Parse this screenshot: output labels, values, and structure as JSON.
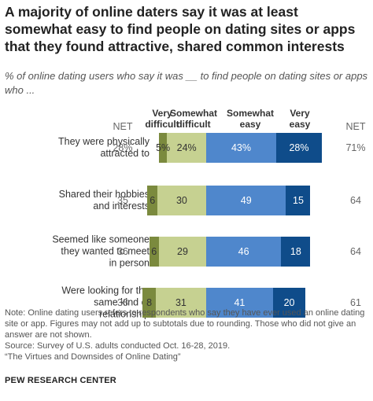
{
  "chart_data": {
    "type": "diverging_bar",
    "title": "A majority of online daters say it was at least somewhat easy to find people on dating sites or apps that they found attractive, shared common interests",
    "subtitle": "% of online dating users who say it was __ to find people on dating sites or apps who ...",
    "categories": [
      "They were physically\nattracted to",
      "Shared their hobbies\nand interests",
      "Seemed like someone\nthey wanted to meet\nin person",
      "Were looking for the\nsame kind of\nrelationship"
    ],
    "series": [
      {
        "name": "Very\ndifficult",
        "color": "#7b8a3e",
        "label_color": "#333333",
        "side": "negative",
        "values": [
          5,
          6,
          6,
          8
        ],
        "value_labels": [
          "5%",
          "6",
          "6",
          "8"
        ]
      },
      {
        "name": "Somewhat\ndifficult",
        "color": "#c6d191",
        "label_color": "#333333",
        "side": "negative",
        "values": [
          24,
          30,
          29,
          31
        ],
        "value_labels": [
          "24%",
          "30",
          "29",
          "31"
        ]
      },
      {
        "name": "Somewhat\neasy",
        "color": "#4f87cc",
        "label_color": "#ffffff",
        "side": "positive",
        "values": [
          43,
          49,
          46,
          41
        ],
        "value_labels": [
          "43%",
          "49",
          "46",
          "41"
        ]
      },
      {
        "name": "Very\neasy",
        "color": "#0f4c8a",
        "label_color": "#ffffff",
        "side": "positive",
        "values": [
          28,
          15,
          18,
          20
        ],
        "value_labels": [
          "28%",
          "15",
          "18",
          "20"
        ]
      }
    ],
    "net_left": {
      "label": "NET",
      "values": [
        28,
        35,
        36,
        38
      ],
      "value_labels": [
        "28%",
        "35",
        "36",
        "38"
      ]
    },
    "net_right": {
      "label": "NET",
      "values": [
        71,
        64,
        64,
        61
      ],
      "value_labels": [
        "71%",
        "64",
        "64",
        "61"
      ]
    },
    "note": "Note: Online dating users refers to respondents who say they have ever used an online dating site or app. Figures may not add up to subtotals due to rounding. Those who did not give an answer are not shown.",
    "source": "Source: Survey of U.S. adults conducted Oct. 16-28, 2019.",
    "source_title": "“The Virtues and Downsides of Online Dating”",
    "footer": "PEW RESEARCH CENTER"
  }
}
